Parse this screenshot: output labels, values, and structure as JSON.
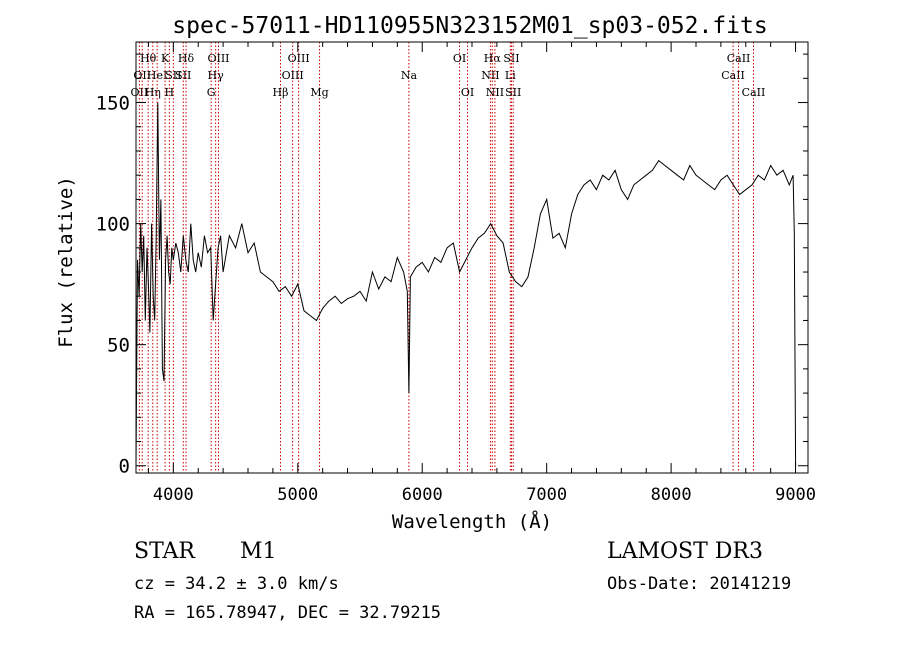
{
  "chart_data": {
    "type": "line",
    "title": "spec-57011-HD110955N323152M01_sp03-052.fits",
    "xlabel": "Wavelength (Å)",
    "ylabel": "Flux (relative)",
    "xlim": [
      3700,
      9100
    ],
    "ylim": [
      -3,
      175
    ],
    "xticks": [
      4000,
      5000,
      6000,
      7000,
      8000,
      9000
    ],
    "yticks": [
      0,
      50,
      100,
      150
    ],
    "grid": false,
    "series": [
      {
        "x": [
          3700,
          3712,
          3725,
          3738,
          3750,
          3762,
          3775,
          3788,
          3800,
          3812,
          3825,
          3838,
          3850,
          3862,
          3875,
          3888,
          3900,
          3912,
          3925,
          3938,
          3950,
          3962,
          3975,
          3988,
          4000,
          4020,
          4040,
          4060,
          4080,
          4100,
          4120,
          4140,
          4160,
          4180,
          4200,
          4225,
          4250,
          4275,
          4300,
          4320,
          4340,
          4360,
          4380,
          4400,
          4450,
          4500,
          4550,
          4600,
          4650,
          4700,
          4750,
          4800,
          4850,
          4900,
          4950,
          5000,
          5050,
          5100,
          5150,
          5200,
          5250,
          5300,
          5350,
          5400,
          5450,
          5500,
          5550,
          5600,
          5650,
          5700,
          5750,
          5800,
          5850,
          5880,
          5893,
          5905,
          5950,
          6000,
          6050,
          6100,
          6150,
          6200,
          6250,
          6300,
          6350,
          6400,
          6450,
          6500,
          6550,
          6600,
          6650,
          6700,
          6750,
          6800,
          6850,
          6900,
          6950,
          7000,
          7050,
          7100,
          7150,
          7200,
          7250,
          7300,
          7350,
          7400,
          7450,
          7500,
          7550,
          7600,
          7650,
          7700,
          7750,
          7800,
          7850,
          7900,
          7950,
          8000,
          8050,
          8100,
          8150,
          8200,
          8250,
          8300,
          8350,
          8400,
          8450,
          8500,
          8550,
          8600,
          8650,
          8700,
          8750,
          8800,
          8850,
          8900,
          8950,
          8980,
          8990,
          9000
        ],
        "y": [
          0,
          85,
          70,
          100,
          80,
          95,
          60,
          90,
          75,
          55,
          100,
          70,
          60,
          95,
          150,
          85,
          110,
          40,
          35,
          85,
          95,
          80,
          75,
          90,
          85,
          92,
          88,
          80,
          95,
          85,
          80,
          100,
          85,
          80,
          88,
          82,
          95,
          88,
          90,
          60,
          75,
          90,
          95,
          80,
          95,
          90,
          100,
          88,
          92,
          80,
          78,
          76,
          72,
          74,
          70,
          75,
          64,
          62,
          60,
          65,
          68,
          70,
          67,
          69,
          70,
          72,
          68,
          80,
          73,
          78,
          76,
          86,
          80,
          72,
          30,
          78,
          82,
          84,
          80,
          86,
          84,
          90,
          92,
          80,
          85,
          90,
          94,
          96,
          100,
          95,
          92,
          80,
          76,
          74,
          78,
          90,
          104,
          110,
          94,
          96,
          90,
          104,
          112,
          116,
          118,
          114,
          120,
          118,
          122,
          114,
          110,
          116,
          118,
          120,
          122,
          126,
          124,
          122,
          120,
          118,
          124,
          120,
          118,
          116,
          114,
          118,
          120,
          116,
          112,
          114,
          116,
          120,
          118,
          124,
          120,
          122,
          116,
          120,
          96,
          0
        ]
      }
    ],
    "line_markers": [
      {
        "wavelength": 3727,
        "label": "OII",
        "row": 3
      },
      {
        "wavelength": 3750,
        "label": "OII",
        "row": 2
      },
      {
        "wavelength": 3798,
        "label": "Hθ",
        "row": 1
      },
      {
        "wavelength": 3835,
        "label": "Hη",
        "row": 3
      },
      {
        "wavelength": 3870,
        "label": "HeI",
        "row": 2
      },
      {
        "wavelength": 3934,
        "label": "K",
        "row": 1
      },
      {
        "wavelength": 3968,
        "label": "H",
        "row": 3
      },
      {
        "wavelength": 4000,
        "label": "SII",
        "row": 2
      },
      {
        "wavelength": 4102,
        "label": "Hδ",
        "row": 1
      },
      {
        "wavelength": 4080,
        "label": "SII",
        "row": 2
      },
      {
        "wavelength": 4304,
        "label": "G",
        "row": 3
      },
      {
        "wavelength": 4340,
        "label": "Hγ",
        "row": 2
      },
      {
        "wavelength": 4363,
        "label": "OIII",
        "row": 1
      },
      {
        "wavelength": 4861,
        "label": "Hβ",
        "row": 3
      },
      {
        "wavelength": 4959,
        "label": "OIII",
        "row": 2
      },
      {
        "wavelength": 5007,
        "label": "OIII",
        "row": 1
      },
      {
        "wavelength": 5175,
        "label": "Mg",
        "row": 3
      },
      {
        "wavelength": 5893,
        "label": "Na",
        "row": 2
      },
      {
        "wavelength": 6300,
        "label": "OI",
        "row": 1
      },
      {
        "wavelength": 6364,
        "label": "OI",
        "row": 3
      },
      {
        "wavelength": 6548,
        "label": "NII",
        "row": 2
      },
      {
        "wavelength": 6563,
        "label": "Hα",
        "row": 1
      },
      {
        "wavelength": 6584,
        "label": "NII",
        "row": 3
      },
      {
        "wavelength": 6708,
        "label": "Li",
        "row": 2
      },
      {
        "wavelength": 6717,
        "label": "SII",
        "row": 1
      },
      {
        "wavelength": 6731,
        "label": "SII",
        "row": 3
      },
      {
        "wavelength": 8498,
        "label": "CaII",
        "row": 2
      },
      {
        "wavelength": 8542,
        "label": "CaII",
        "row": 1
      },
      {
        "wavelength": 8662,
        "label": "CaII",
        "row": 3
      }
    ]
  },
  "info": {
    "object_class": "STAR",
    "subclass": "M1",
    "survey": "LAMOST DR3",
    "cz": "cz = 34.2 ± 3.0 km/s",
    "obs_date": "Obs-Date: 20141219",
    "coords": "RA = 165.78947, DEC =  32.79215"
  }
}
